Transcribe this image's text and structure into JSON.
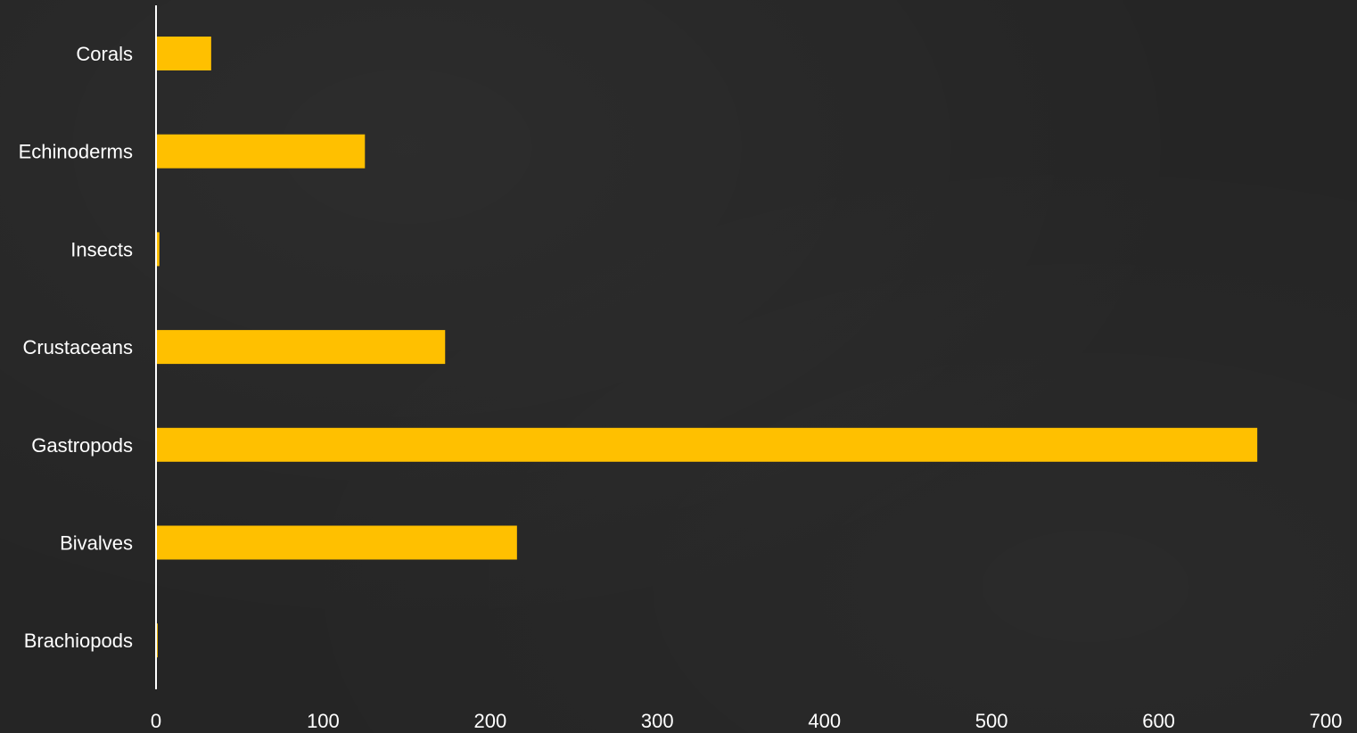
{
  "chart_data": {
    "type": "bar",
    "orientation": "horizontal",
    "categories": [
      "Corals",
      "Echinoderms",
      "Insects",
      "Crustaceans",
      "Gastropods",
      "Bivalves",
      "Brachiopods"
    ],
    "values": [
      33,
      125,
      2,
      173,
      659,
      216,
      1
    ],
    "title": "",
    "xlabel": "",
    "ylabel": "",
    "xlim": [
      0,
      700
    ],
    "x_ticks": [
      "0",
      "100",
      "200",
      "300",
      "400",
      "500",
      "600",
      "700"
    ],
    "grid": false,
    "legend": "none",
    "bar_color": "#FFC000",
    "axis_color": "#FFFFFF",
    "background_color": "#252525"
  }
}
